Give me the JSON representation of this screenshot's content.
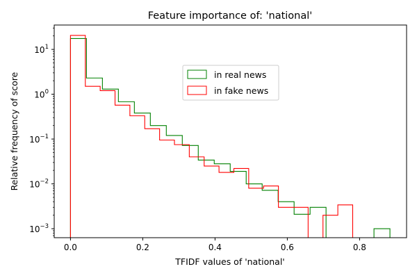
{
  "chart_data": {
    "type": "histogram",
    "title": "Feature importance of: 'national'",
    "xlabel": "TFIDF values of 'national'",
    "ylabel": "Relative frequency of score",
    "xlim": [
      -0.045,
      0.93
    ],
    "ylim": [
      0.00063,
      35
    ],
    "yscale": "log",
    "grid": false,
    "legend_position": "center",
    "x_ticks": [
      {
        "value": 0.0,
        "label": "0.0"
      },
      {
        "value": 0.2,
        "label": "0.2"
      },
      {
        "value": 0.4,
        "label": "0.4"
      },
      {
        "value": 0.6,
        "label": "0.6"
      },
      {
        "value": 0.8,
        "label": "0.8"
      }
    ],
    "y_ticks": [
      {
        "value": 0.001,
        "base": "10",
        "exp": "−3"
      },
      {
        "value": 0.01,
        "base": "10",
        "exp": "−2"
      },
      {
        "value": 0.1,
        "base": "10",
        "exp": "−1"
      },
      {
        "value": 1,
        "base": "10",
        "exp": "0"
      },
      {
        "value": 10,
        "base": "10",
        "exp": "1"
      }
    ],
    "series": [
      {
        "name": "in real news",
        "color": "#008000",
        "bin_edges": [
          0.0,
          0.0442,
          0.0884,
          0.1326,
          0.1768,
          0.221,
          0.2652,
          0.3094,
          0.3536,
          0.3978,
          0.442,
          0.4862,
          0.5304,
          0.5746,
          0.6188,
          0.663,
          0.7072,
          0.7514,
          0.7956,
          0.8398,
          0.884
        ],
        "values": [
          17.5,
          2.3,
          1.3,
          0.68,
          0.38,
          0.2,
          0.12,
          0.072,
          0.034,
          0.028,
          0.019,
          0.01,
          0.0072,
          0.004,
          0.0021,
          0.003,
          0,
          0,
          0,
          0.001
        ]
      },
      {
        "name": "in fake news",
        "color": "#ff0000",
        "bin_edges": [
          0.0,
          0.0411,
          0.0822,
          0.1233,
          0.1644,
          0.2055,
          0.2466,
          0.2877,
          0.3288,
          0.3699,
          0.411,
          0.4521,
          0.4932,
          0.5343,
          0.5754,
          0.6165,
          0.6576,
          0.6987,
          0.7398,
          0.7809,
          0.822
        ],
        "values": [
          20.5,
          1.5,
          1.2,
          0.57,
          0.33,
          0.17,
          0.095,
          0.075,
          0.04,
          0.025,
          0.018,
          0.022,
          0.008,
          0.009,
          0.003,
          0.003,
          0,
          0.002,
          0.0034,
          0
        ]
      }
    ]
  }
}
